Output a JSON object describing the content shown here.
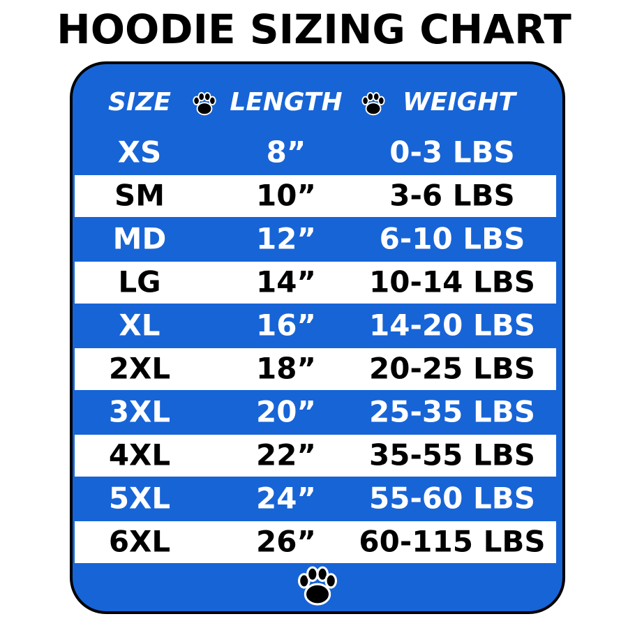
{
  "header": {
    "title": "HOODIE SIZING CHART"
  },
  "table": {
    "columns": [
      "SIZE",
      "LENGTH",
      "WEIGHT"
    ],
    "rows": [
      [
        "XS",
        "8”",
        "0-3 LBS"
      ],
      [
        "SM",
        "10”",
        "3-6 LBS"
      ],
      [
        "MD",
        "12”",
        "6-10 LBS"
      ],
      [
        "LG",
        "14”",
        "10-14 LBS"
      ],
      [
        "XL",
        "16”",
        "14-20 LBS"
      ],
      [
        "2XL",
        "18”",
        "20-25 LBS"
      ],
      [
        "3XL",
        "20”",
        "25-35 LBS"
      ],
      [
        "4XL",
        "22”",
        "35-55 LBS"
      ],
      [
        "5XL",
        "24”",
        "55-60 LBS"
      ],
      [
        "6XL",
        "26”",
        "60-115 LBS"
      ]
    ]
  }
}
